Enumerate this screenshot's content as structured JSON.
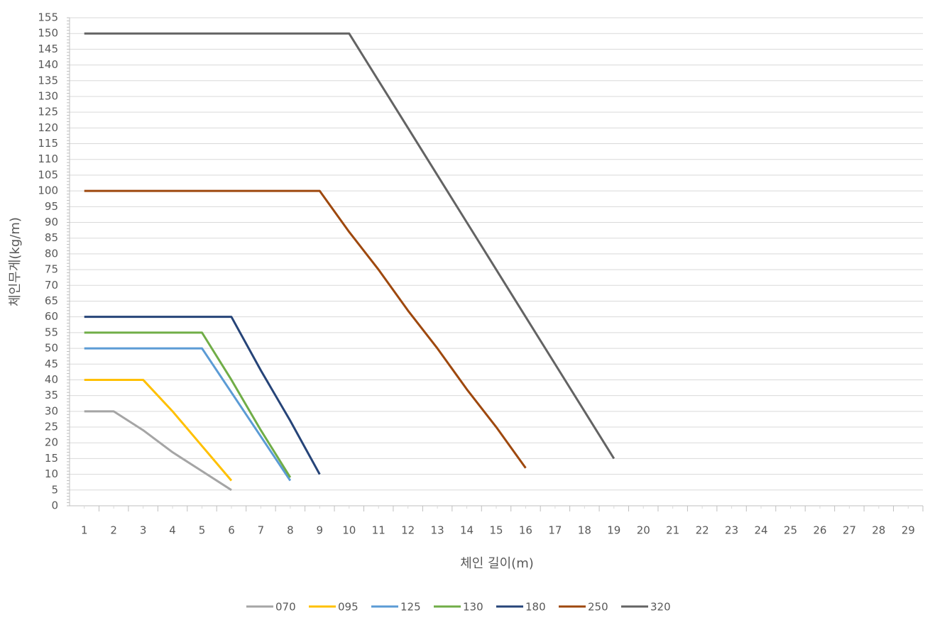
{
  "chart_data": {
    "type": "line",
    "y_label": "체인무게(kg/m)",
    "x_label": "체인 길이(m)",
    "categories": [
      1,
      2,
      3,
      4,
      5,
      6,
      7,
      8,
      9,
      10,
      11,
      12,
      13,
      14,
      15,
      16,
      17,
      18,
      19,
      20,
      21,
      22,
      23,
      24,
      25,
      26,
      27,
      28,
      29
    ],
    "series": [
      {
        "name": "070",
        "color": "#a5a5a5",
        "values": [
          30,
          30,
          24,
          17,
          11,
          5,
          null,
          null,
          null,
          null,
          null,
          null,
          null,
          null,
          null,
          null,
          null,
          null,
          null,
          null,
          null,
          null,
          null,
          null,
          null,
          null,
          null,
          null,
          null
        ]
      },
      {
        "name": "095",
        "color": "#ffc000",
        "values": [
          40,
          40,
          40,
          30,
          19,
          8,
          null,
          null,
          null,
          null,
          null,
          null,
          null,
          null,
          null,
          null,
          null,
          null,
          null,
          null,
          null,
          null,
          null,
          null,
          null,
          null,
          null,
          null,
          null
        ]
      },
      {
        "name": "125",
        "color": "#5b9bd5",
        "values": [
          50,
          50,
          50,
          50,
          50,
          36,
          22,
          8,
          null,
          null,
          null,
          null,
          null,
          null,
          null,
          null,
          null,
          null,
          null,
          null,
          null,
          null,
          null,
          null,
          null,
          null,
          null,
          null,
          null
        ]
      },
      {
        "name": "130",
        "color": "#70ad47",
        "values": [
          55,
          55,
          55,
          55,
          55,
          40,
          24,
          9,
          null,
          null,
          null,
          null,
          null,
          null,
          null,
          null,
          null,
          null,
          null,
          null,
          null,
          null,
          null,
          null,
          null,
          null,
          null,
          null,
          null
        ]
      },
      {
        "name": "180",
        "color": "#264478",
        "values": [
          60,
          60,
          60,
          60,
          60,
          60,
          43,
          27,
          10,
          null,
          null,
          null,
          null,
          null,
          null,
          null,
          null,
          null,
          null,
          null,
          null,
          null,
          null,
          null,
          null,
          null,
          null,
          null,
          null
        ]
      },
      {
        "name": "250",
        "color": "#9e480e",
        "values": [
          100,
          100,
          100,
          100,
          100,
          100,
          100,
          100,
          100,
          87,
          75,
          62,
          50,
          37,
          25,
          12,
          null,
          null,
          null,
          null,
          null,
          null,
          null,
          null,
          null,
          null,
          null,
          null,
          null
        ]
      },
      {
        "name": "320",
        "color": "#636363",
        "values": [
          150,
          150,
          150,
          150,
          150,
          150,
          150,
          150,
          150,
          150,
          135,
          120,
          105,
          90,
          75,
          60,
          45,
          30,
          15,
          null,
          null,
          null,
          null,
          null,
          null,
          null,
          null,
          null,
          null
        ]
      }
    ],
    "ylim": [
      0,
      155
    ],
    "yticks": [
      0,
      5,
      10,
      15,
      20,
      25,
      30,
      35,
      40,
      45,
      50,
      55,
      60,
      65,
      70,
      75,
      80,
      85,
      90,
      95,
      100,
      105,
      110,
      115,
      120,
      125,
      130,
      135,
      140,
      145,
      150,
      155
    ],
    "grid": true
  }
}
